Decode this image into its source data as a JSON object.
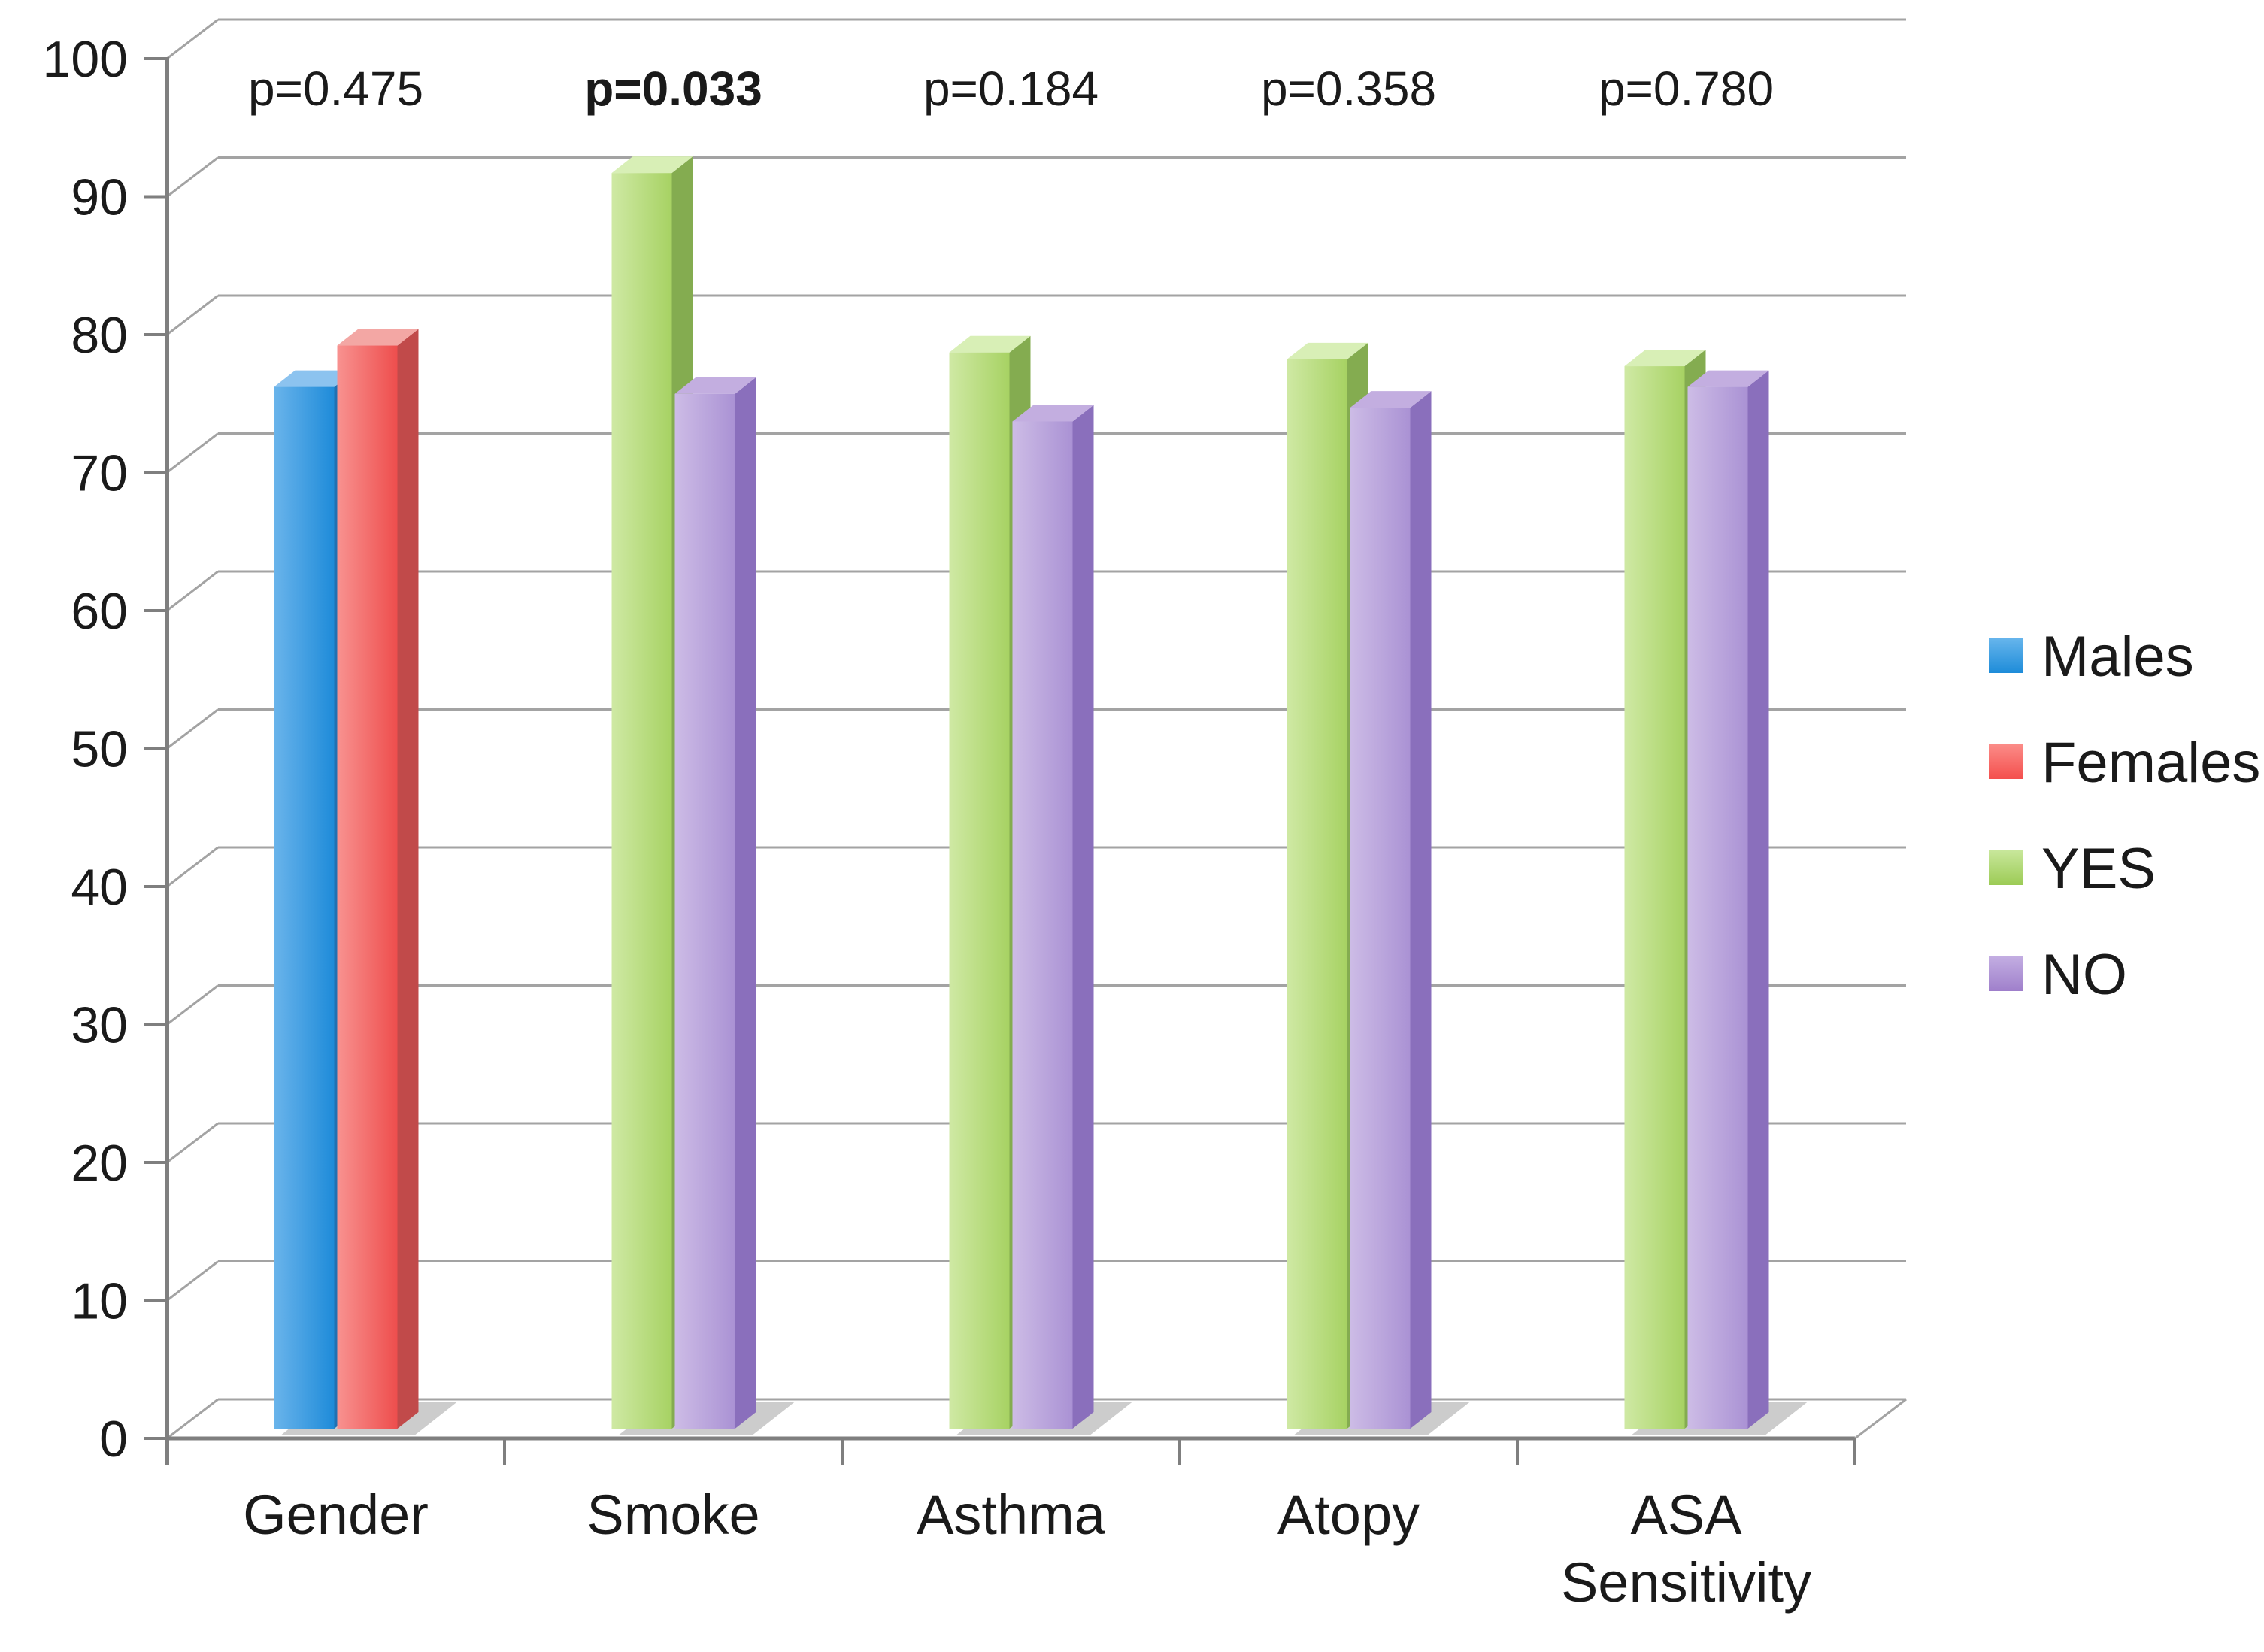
{
  "chart_data": {
    "type": "bar",
    "style": "3d-clustered-column",
    "title": "",
    "xlabel": "",
    "ylabel": "",
    "ylim": [
      0,
      100
    ],
    "y_ticks": [
      0,
      10,
      20,
      30,
      40,
      50,
      60,
      70,
      80,
      90,
      100
    ],
    "grid": true,
    "legend_position": "right",
    "categories": [
      "Gender",
      "Smoke",
      "Asthma",
      "Atopy",
      "ASA Sensitivity"
    ],
    "groups": [
      {
        "category": "Gender",
        "p_label": "p=0.475",
        "p_bold": false,
        "bars": [
          {
            "series": "Males",
            "value": 75.5
          },
          {
            "series": "Females",
            "value": 78.5
          }
        ]
      },
      {
        "category": "Smoke",
        "p_label": "p=0.033",
        "p_bold": true,
        "bars": [
          {
            "series": "YES",
            "value": 91
          },
          {
            "series": "NO",
            "value": 75
          }
        ]
      },
      {
        "category": "Asthma",
        "p_label": "p=0.184",
        "p_bold": false,
        "bars": [
          {
            "series": "YES",
            "value": 78
          },
          {
            "series": "NO",
            "value": 73
          }
        ]
      },
      {
        "category": "Atopy",
        "p_label": "p=0.358",
        "p_bold": false,
        "bars": [
          {
            "series": "YES",
            "value": 77.5
          },
          {
            "series": "NO",
            "value": 74
          }
        ]
      },
      {
        "category": "ASA Sensitivity",
        "p_label": "p=0.780",
        "p_bold": false,
        "bars": [
          {
            "series": "YES",
            "value": 77
          },
          {
            "series": "NO",
            "value": 75.5
          }
        ]
      }
    ],
    "legend": [
      {
        "label": "Males",
        "color": "#39A1E4"
      },
      {
        "label": "Females",
        "color": "#FB6A68"
      },
      {
        "label": "YES",
        "color": "#AFD86F"
      },
      {
        "label": "NO",
        "color": "#B195D8"
      }
    ],
    "palette": {
      "Males": {
        "front_light": "#6AB4EB",
        "front_dark": "#1E8BD9",
        "top": "#8CC3EF",
        "side": "#2171B3",
        "legend_light": "#66B5EC",
        "legend_dark": "#1E8CD9"
      },
      "Females": {
        "front_light": "#F89290",
        "front_dark": "#EE4E4D",
        "top": "#F3A7A4",
        "side": "#C14A4A",
        "legend_light": "#FB8C88",
        "legend_dark": "#F44F4D"
      },
      "YES": {
        "front_light": "#CFE9A4",
        "front_dark": "#A7D263",
        "top": "#D8EFB6",
        "side": "#84AC50",
        "legend_light": "#C8E79B",
        "legend_dark": "#9CCB55"
      },
      "NO": {
        "front_light": "#CDBCE6",
        "front_dark": "#AA92D4",
        "top": "#C3AEE0",
        "side": "#8A6FBC",
        "legend_light": "#C3AEE2",
        "legend_dark": "#9F7FCB"
      }
    },
    "grid_color": "#A3A3A3",
    "axis_color": "#7F7F7F",
    "shadow_color": "#AAAAAA",
    "text_color": "#1a1a1a"
  }
}
